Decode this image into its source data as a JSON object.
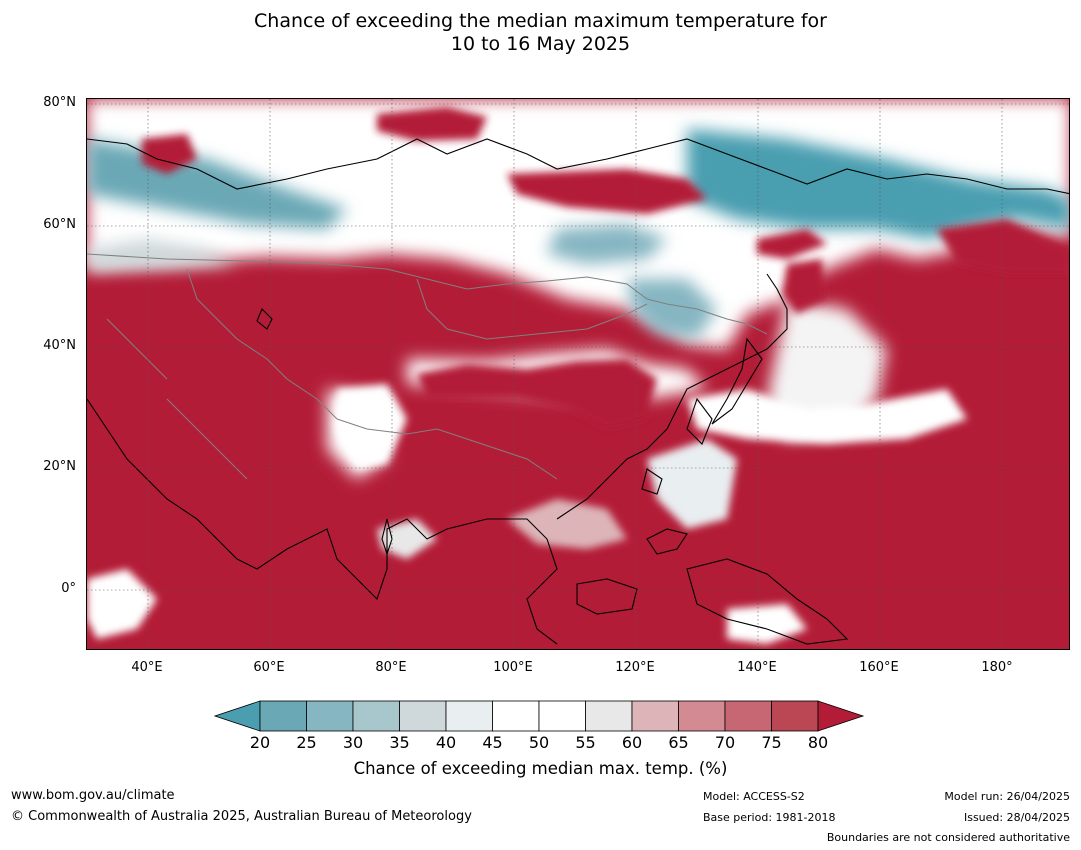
{
  "title_line1": "Chance of exceeding the median maximum temperature for",
  "title_line2": "10 to 16 May 2025",
  "lat_labels": [
    "80°N",
    "60°N",
    "40°N",
    "20°N",
    "0°"
  ],
  "lon_labels": [
    "40°E",
    "60°E",
    "80°E",
    "100°E",
    "120°E",
    "140°E",
    "160°E",
    "180°"
  ],
  "colorbar": {
    "ticks": [
      "20",
      "25",
      "30",
      "35",
      "40",
      "45",
      "50",
      "55",
      "60",
      "65",
      "70",
      "75",
      "80"
    ],
    "colors": [
      "#6aa8b6",
      "#86b6c2",
      "#a8c7cc",
      "#cfd8da",
      "#e9eef0",
      "#ffffff",
      "#ffffff",
      "#e8e8e8",
      "#ddb5b9",
      "#d48a93",
      "#c76773",
      "#bb4654"
    ],
    "low_color": "#4a9eb0",
    "high_color": "#b31c37",
    "label": "Chance of exceeding median max. temp. (%)"
  },
  "footer": {
    "url": "www.bom.gov.au/climate",
    "copyright": "© Commonwealth of Australia 2025, Australian Bureau of Meteorology",
    "model": "Model: ACCESS-S2",
    "base_period": "Base period: 1981-2018",
    "model_run": "Model run: 26/04/2025",
    "issued": "Issued: 28/04/2025",
    "disclaimer": "Boundaries are not considered authoritative"
  }
}
